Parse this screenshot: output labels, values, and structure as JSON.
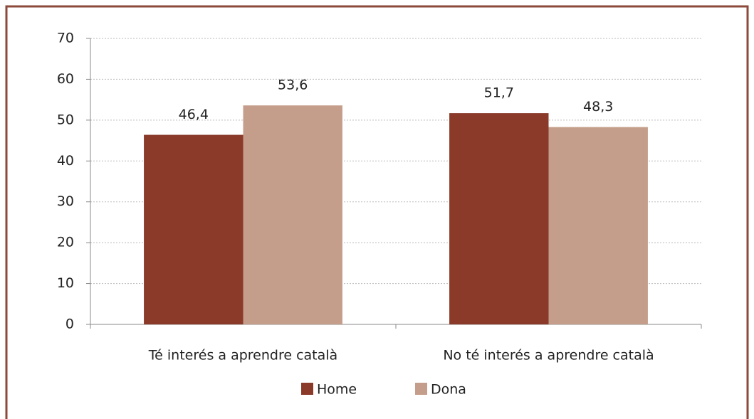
{
  "chart_data": {
    "type": "bar",
    "categories": [
      "Té interés a aprendre català",
      "No té interés a aprendre català"
    ],
    "series": [
      {
        "name": "Home",
        "color": "#8b3a2a",
        "values": [
          46.4,
          51.7
        ],
        "value_labels": [
          "46,4",
          "51,7"
        ]
      },
      {
        "name": "Dona",
        "color": "#c49e8a",
        "values": [
          53.6,
          48.3
        ],
        "value_labels": [
          "53,6",
          "48,3"
        ]
      }
    ],
    "ylim": [
      0,
      70
    ],
    "yticks": [
      0,
      10,
      20,
      30,
      40,
      50,
      60,
      70
    ],
    "grid": true,
    "legend": "bottom"
  }
}
